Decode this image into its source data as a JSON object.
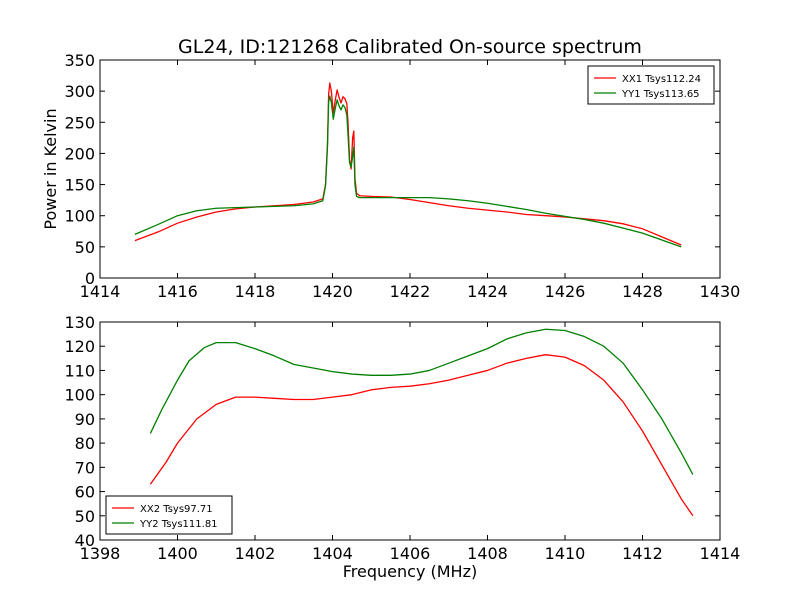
{
  "title": "GL24, ID:121268 Calibrated On-source spectrum",
  "chart_data": [
    {
      "type": "line",
      "panel": "top",
      "title": "GL24, ID:121268 Calibrated On-source spectrum",
      "xlabel": "",
      "ylabel": "Power in Kelvin",
      "xlim": [
        1414,
        1430
      ],
      "ylim": [
        0,
        350
      ],
      "xticks": [
        1414,
        1416,
        1418,
        1420,
        1422,
        1424,
        1426,
        1428,
        1430
      ],
      "yticks": [
        0,
        50,
        100,
        150,
        200,
        250,
        300,
        350
      ],
      "grid": false,
      "legend_position": "top-right",
      "series": [
        {
          "name": "XX1 Tsys112.24",
          "color": "#ff0000",
          "points": [
            [
              1414.9,
              60
            ],
            [
              1415.5,
              74
            ],
            [
              1416,
              88
            ],
            [
              1416.5,
              98
            ],
            [
              1417,
              106
            ],
            [
              1417.5,
              111
            ],
            [
              1418,
              114
            ],
            [
              1418.5,
              116
            ],
            [
              1419,
              118
            ],
            [
              1419.5,
              122
            ],
            [
              1419.75,
              127
            ],
            [
              1419.82,
              150
            ],
            [
              1419.87,
              215
            ],
            [
              1419.9,
              295
            ],
            [
              1419.93,
              313
            ],
            [
              1419.97,
              300
            ],
            [
              1420.02,
              265
            ],
            [
              1420.07,
              285
            ],
            [
              1420.12,
              302
            ],
            [
              1420.17,
              290
            ],
            [
              1420.22,
              281
            ],
            [
              1420.27,
              291
            ],
            [
              1420.32,
              288
            ],
            [
              1420.37,
              280
            ],
            [
              1420.4,
              250
            ],
            [
              1420.44,
              190
            ],
            [
              1420.48,
              175
            ],
            [
              1420.52,
              225
            ],
            [
              1420.55,
              236
            ],
            [
              1420.58,
              160
            ],
            [
              1420.62,
              136
            ],
            [
              1420.7,
              132
            ],
            [
              1421,
              131
            ],
            [
              1421.5,
              130
            ],
            [
              1422,
              126
            ],
            [
              1422.5,
              121
            ],
            [
              1423,
              116
            ],
            [
              1423.5,
              112
            ],
            [
              1424,
              109
            ],
            [
              1424.5,
              106
            ],
            [
              1425,
              102
            ],
            [
              1425.5,
              100
            ],
            [
              1426,
              98
            ],
            [
              1426.5,
              95
            ],
            [
              1427,
              92
            ],
            [
              1427.5,
              87
            ],
            [
              1428,
              79
            ],
            [
              1428.5,
              66
            ],
            [
              1429,
              53
            ]
          ]
        },
        {
          "name": "YY1 Tsys113.65",
          "color": "#008000",
          "points": [
            [
              1414.9,
              70
            ],
            [
              1415.5,
              86
            ],
            [
              1416,
              100
            ],
            [
              1416.5,
              108
            ],
            [
              1417,
              112
            ],
            [
              1417.5,
              113
            ],
            [
              1418,
              114
            ],
            [
              1418.5,
              115
            ],
            [
              1419,
              116
            ],
            [
              1419.5,
              119
            ],
            [
              1419.75,
              124
            ],
            [
              1419.82,
              148
            ],
            [
              1419.87,
              210
            ],
            [
              1419.9,
              282
            ],
            [
              1419.93,
              292
            ],
            [
              1419.97,
              282
            ],
            [
              1420.02,
              255
            ],
            [
              1420.07,
              272
            ],
            [
              1420.12,
              286
            ],
            [
              1420.17,
              276
            ],
            [
              1420.22,
              270
            ],
            [
              1420.27,
              278
            ],
            [
              1420.32,
              274
            ],
            [
              1420.37,
              262
            ],
            [
              1420.4,
              230
            ],
            [
              1420.44,
              185
            ],
            [
              1420.48,
              178
            ],
            [
              1420.52,
              195
            ],
            [
              1420.55,
              210
            ],
            [
              1420.58,
              150
            ],
            [
              1420.62,
              131
            ],
            [
              1420.7,
              129
            ],
            [
              1421,
              129
            ],
            [
              1421.5,
              129
            ],
            [
              1422,
              129
            ],
            [
              1422.5,
              129
            ],
            [
              1423,
              127
            ],
            [
              1423.5,
              124
            ],
            [
              1424,
              120
            ],
            [
              1424.5,
              115
            ],
            [
              1425,
              110
            ],
            [
              1425.5,
              104
            ],
            [
              1426,
              99
            ],
            [
              1426.5,
              94
            ],
            [
              1427,
              88
            ],
            [
              1427.5,
              80
            ],
            [
              1428,
              72
            ],
            [
              1428.5,
              61
            ],
            [
              1429,
              50
            ]
          ]
        }
      ]
    },
    {
      "type": "line",
      "panel": "bottom",
      "title": "",
      "xlabel": "Frequency (MHz)",
      "ylabel": "",
      "xlim": [
        1398,
        1414
      ],
      "ylim": [
        40,
        130
      ],
      "xticks": [
        1398,
        1400,
        1402,
        1404,
        1406,
        1408,
        1410,
        1412,
        1414
      ],
      "yticks": [
        40,
        50,
        60,
        70,
        80,
        90,
        100,
        110,
        120,
        130
      ],
      "grid": false,
      "legend_position": "bottom-left",
      "series": [
        {
          "name": "XX2 Tsys97.71",
          "color": "#ff0000",
          "points": [
            [
              1399.3,
              63
            ],
            [
              1399.7,
              72
            ],
            [
              1400,
              80
            ],
            [
              1400.5,
              90
            ],
            [
              1401,
              96
            ],
            [
              1401.5,
              99
            ],
            [
              1402,
              99
            ],
            [
              1402.5,
              98.5
            ],
            [
              1403,
              98
            ],
            [
              1403.5,
              98
            ],
            [
              1404,
              99
            ],
            [
              1404.5,
              100
            ],
            [
              1405,
              102
            ],
            [
              1405.5,
              103
            ],
            [
              1406,
              103.5
            ],
            [
              1406.5,
              104.5
            ],
            [
              1407,
              106
            ],
            [
              1407.5,
              108
            ],
            [
              1408,
              110
            ],
            [
              1408.5,
              113
            ],
            [
              1409,
              115
            ],
            [
              1409.5,
              116.5
            ],
            [
              1410,
              115.5
            ],
            [
              1410.5,
              112
            ],
            [
              1411,
              106
            ],
            [
              1411.5,
              97
            ],
            [
              1412,
              85
            ],
            [
              1412.5,
              71
            ],
            [
              1413,
              57
            ],
            [
              1413.3,
              50
            ]
          ]
        },
        {
          "name": "YY2 Tsys111.81",
          "color": "#008000",
          "points": [
            [
              1399.3,
              84
            ],
            [
              1399.6,
              94
            ],
            [
              1400,
              106
            ],
            [
              1400.3,
              114
            ],
            [
              1400.7,
              119.5
            ],
            [
              1401,
              121.5
            ],
            [
              1401.5,
              121.5
            ],
            [
              1402,
              119
            ],
            [
              1402.5,
              116
            ],
            [
              1403,
              112.5
            ],
            [
              1403.5,
              111
            ],
            [
              1404,
              109.5
            ],
            [
              1404.5,
              108.5
            ],
            [
              1405,
              108
            ],
            [
              1405.5,
              108
            ],
            [
              1406,
              108.5
            ],
            [
              1406.5,
              110
            ],
            [
              1407,
              113
            ],
            [
              1407.5,
              116
            ],
            [
              1408,
              119
            ],
            [
              1408.5,
              123
            ],
            [
              1409,
              125.5
            ],
            [
              1409.5,
              127
            ],
            [
              1410,
              126.5
            ],
            [
              1410.5,
              124
            ],
            [
              1411,
              120
            ],
            [
              1411.5,
              113
            ],
            [
              1412,
              102
            ],
            [
              1412.5,
              90
            ],
            [
              1413,
              76
            ],
            [
              1413.3,
              67
            ]
          ]
        }
      ]
    }
  ]
}
